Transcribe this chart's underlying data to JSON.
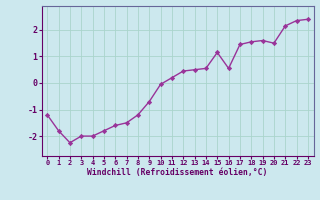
{
  "x": [
    0,
    1,
    2,
    3,
    4,
    5,
    6,
    7,
    8,
    9,
    10,
    11,
    12,
    13,
    14,
    15,
    16,
    17,
    18,
    19,
    20,
    21,
    22,
    23
  ],
  "y": [
    -1.2,
    -1.8,
    -2.25,
    -2.0,
    -2.0,
    -1.8,
    -1.6,
    -1.5,
    -1.2,
    -0.7,
    -0.05,
    0.2,
    0.45,
    0.5,
    0.55,
    1.15,
    0.55,
    1.45,
    1.55,
    1.6,
    1.5,
    2.15,
    2.35,
    2.4
  ],
  "line_color": "#993399",
  "marker": "D",
  "marker_size": 2.2,
  "line_width": 1.0,
  "bg_color": "#cce8ee",
  "grid_color": "#aad4cc",
  "xlabel": "Windchill (Refroidissement éolien,°C)",
  "xlabel_color": "#660066",
  "xlabel_fontsize": 5.8,
  "tick_color": "#660066",
  "tick_fontsize": 5.0,
  "ylim": [
    -2.75,
    2.9
  ],
  "yticks": [
    -2,
    -1,
    0,
    1,
    2
  ],
  "xticks": [
    0,
    1,
    2,
    3,
    4,
    5,
    6,
    7,
    8,
    9,
    10,
    11,
    12,
    13,
    14,
    15,
    16,
    17,
    18,
    19,
    20,
    21,
    22,
    23
  ],
  "spine_color": "#666699",
  "axis_line_color": "#660066"
}
